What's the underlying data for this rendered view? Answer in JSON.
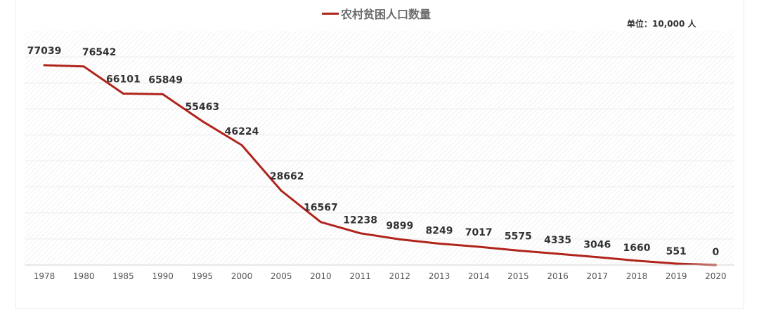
{
  "legend": {
    "label": "农村贫困人口数量"
  },
  "unit_label": "单位：10,000 人",
  "colors": {
    "line": "#b0241c",
    "hatch": "#e6e6e6",
    "grid": "#ebebeb",
    "axis": "#cfcfcf",
    "tick": "#555555",
    "value_label": "#333333"
  },
  "chart_data": {
    "type": "line",
    "categories": [
      "1978",
      "1980",
      "1985",
      "1990",
      "1995",
      "2000",
      "2005",
      "2010",
      "2011",
      "2012",
      "2013",
      "2014",
      "2015",
      "2016",
      "2017",
      "2018",
      "2019",
      "2020"
    ],
    "series": [
      {
        "name": "农村贫困人口数量",
        "values": [
          77039,
          76542,
          66101,
          65849,
          55463,
          46224,
          28662,
          16567,
          12238,
          9899,
          8249,
          7017,
          5575,
          4335,
          3046,
          1660,
          551,
          0
        ]
      }
    ],
    "data_labels": [
      "77039",
      "76542",
      "66101",
      "65849",
      "55463",
      "46224",
      "28662",
      "16567",
      "12238",
      "9899",
      "8249",
      "7017",
      "5575",
      "4335",
      "3046",
      "1660",
      "551",
      "0"
    ],
    "ylim": [
      0,
      77039
    ],
    "grid": true,
    "legend_position": "top-center"
  }
}
